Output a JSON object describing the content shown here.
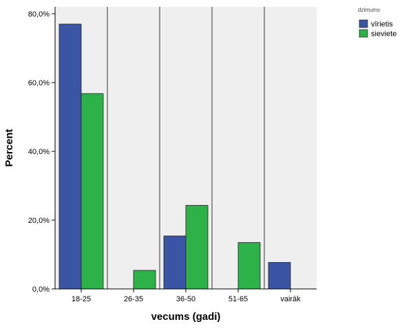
{
  "chart_data": {
    "type": "bar",
    "xlabel": "vecums (gadi)",
    "ylabel": "Percent",
    "categories": [
      "18-25",
      "26-35",
      "36-50",
      "51-65",
      "vairāk"
    ],
    "ylim": [
      0,
      80
    ],
    "yticks": [
      0,
      20,
      40,
      60,
      80
    ],
    "ytick_labels": [
      "0,0%",
      "20,0%",
      "40,0%",
      "60,0%",
      "80,0%"
    ],
    "legend": {
      "title": "dzimums",
      "position": "top-right"
    },
    "series": [
      {
        "name": "vīrietis",
        "color": "#3a55a4",
        "values": [
          77.0,
          0.0,
          15.4,
          0.0,
          7.7
        ]
      },
      {
        "name": "sieviete",
        "color": "#2db24a",
        "values": [
          56.8,
          5.4,
          24.3,
          13.5,
          0.0
        ]
      }
    ],
    "plot_background": "#efefef",
    "grid": "vertical separators between categories"
  }
}
